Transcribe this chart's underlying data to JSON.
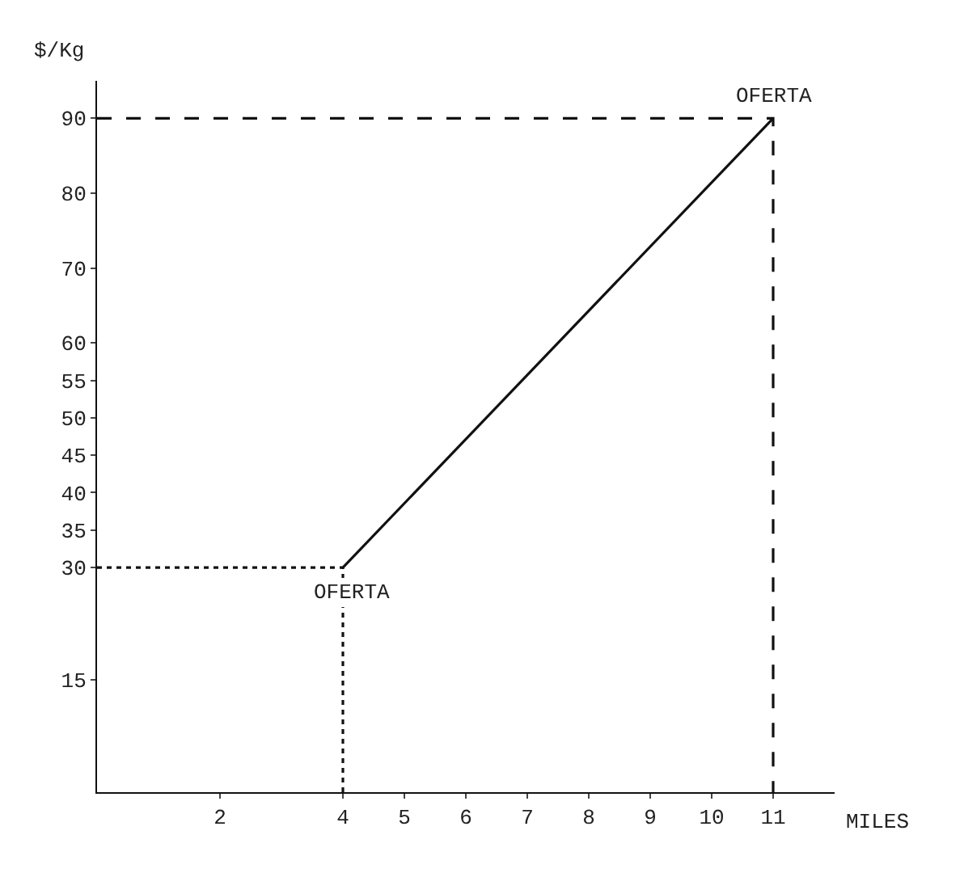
{
  "chart_data": {
    "type": "line",
    "ylabel": "$/Kg",
    "xlabel": "MILES",
    "series": [
      {
        "type": "line",
        "x": [
          4,
          11
        ],
        "values": [
          30,
          90
        ],
        "color": "#111111",
        "line_style": "solid"
      },
      {
        "type": "line",
        "x": [
          0,
          11,
          11
        ],
        "values": [
          90,
          90,
          0
        ],
        "color": "#111111",
        "line_style": "dashed"
      },
      {
        "type": "line",
        "x": [
          0,
          4,
          4
        ],
        "values": [
          30,
          30,
          0
        ],
        "color": "#111111",
        "line_style": "dotted"
      }
    ],
    "annotations": [
      {
        "text": "OFERTA",
        "x": 11,
        "y": 90
      },
      {
        "text": "OFERTA",
        "x": 4,
        "y": 30
      }
    ],
    "xlim": [
      0,
      12
    ],
    "xticks": [
      2,
      4,
      5,
      6,
      7,
      8,
      9,
      10,
      11
    ],
    "ylim": [
      0,
      95
    ],
    "yticks": [
      15,
      30,
      35,
      40,
      45,
      50,
      55,
      60,
      70,
      80,
      90
    ],
    "grid": false,
    "marker": "none"
  }
}
